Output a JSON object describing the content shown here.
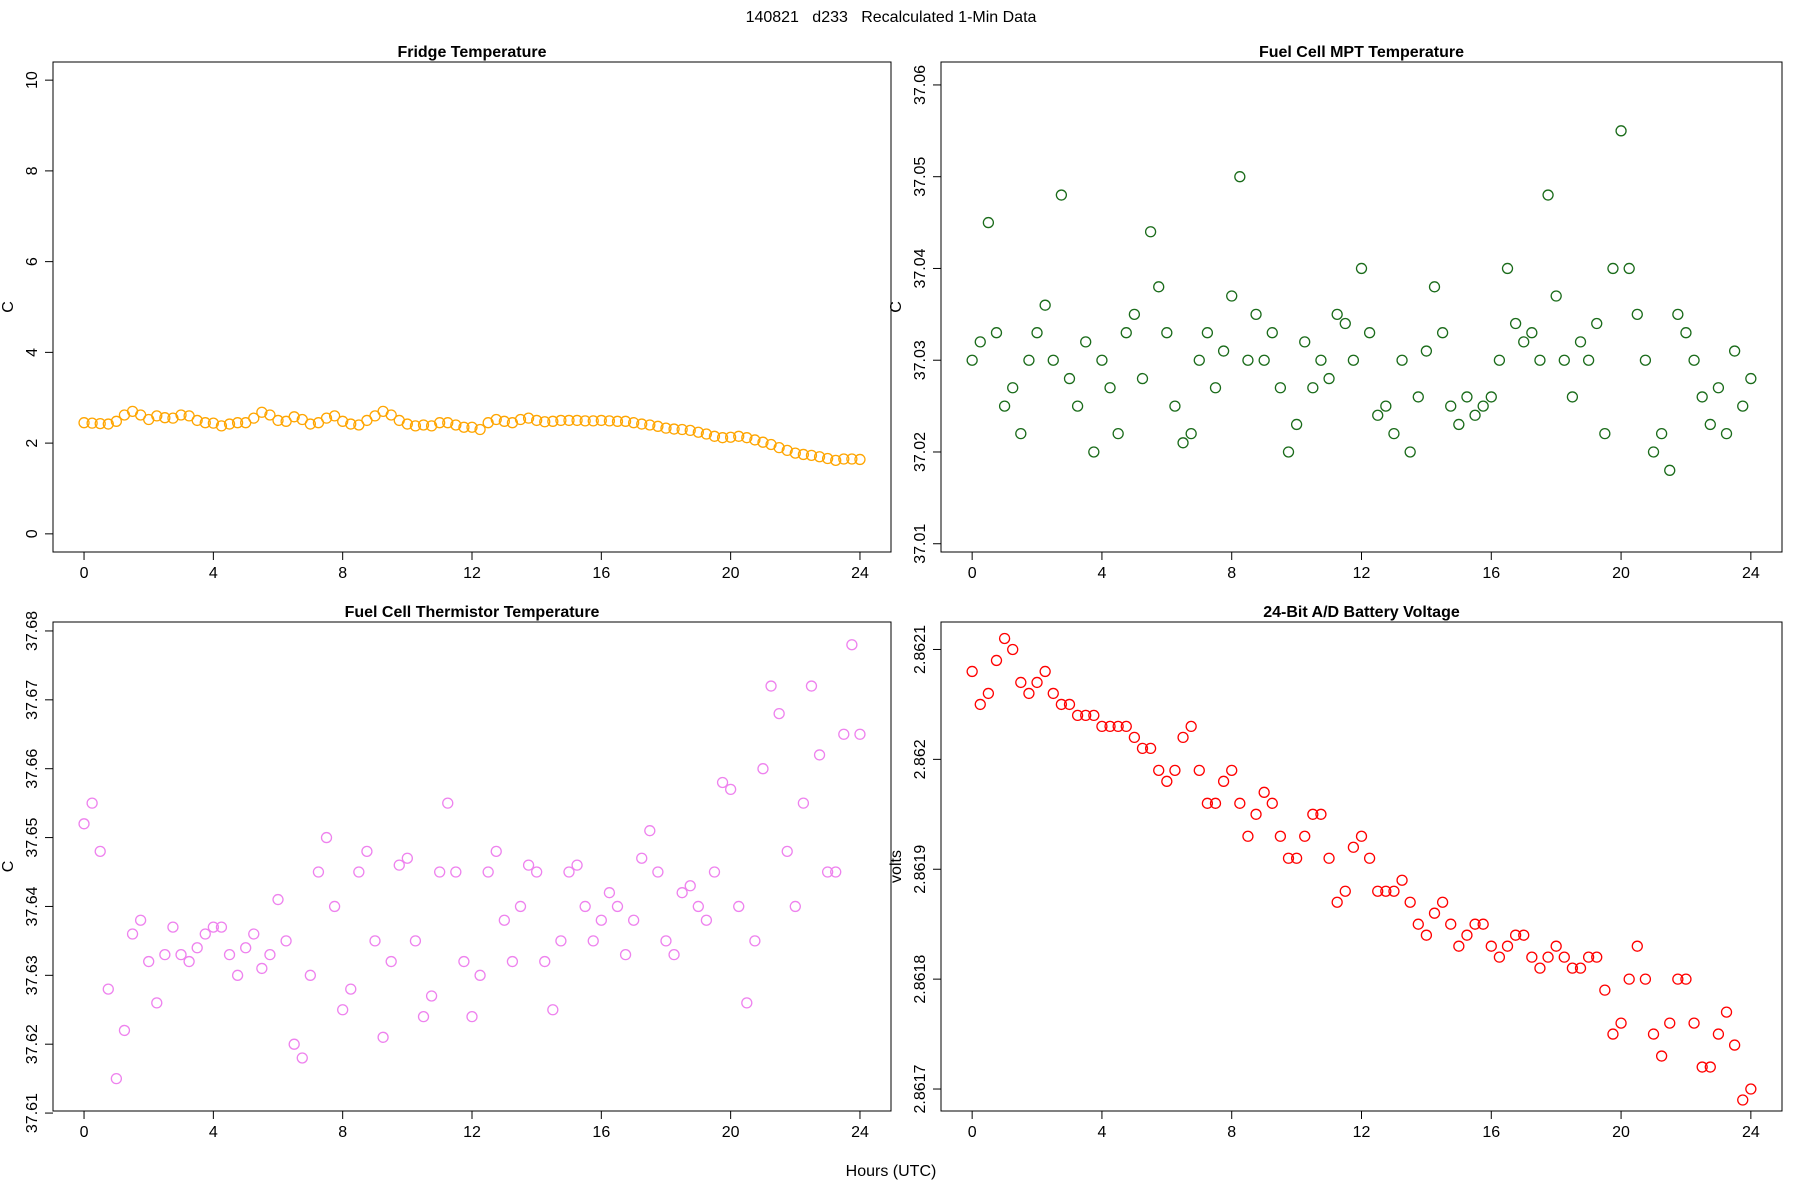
{
  "title": "140821   d233   Recalculated 1-Min Data",
  "x_label": "Hours (UTC)",
  "chart_data": [
    {
      "type": "scatter",
      "title": "Fridge Temperature",
      "y_label": "C",
      "color": "#ffa500",
      "x": [
        0,
        0.25,
        0.5,
        0.75,
        1,
        1.25,
        1.5,
        1.75,
        2,
        2.25,
        2.5,
        2.75,
        3,
        3.25,
        3.5,
        3.75,
        4,
        4.25,
        4.5,
        4.75,
        5,
        5.25,
        5.5,
        5.75,
        6,
        6.25,
        6.5,
        6.75,
        7,
        7.25,
        7.5,
        7.75,
        8,
        8.25,
        8.5,
        8.75,
        9,
        9.25,
        9.5,
        9.75,
        10,
        10.25,
        10.5,
        10.75,
        11,
        11.25,
        11.5,
        11.75,
        12,
        12.25,
        12.5,
        12.75,
        13,
        13.25,
        13.5,
        13.75,
        14,
        14.25,
        14.5,
        14.75,
        15,
        15.25,
        15.5,
        15.75,
        16,
        16.25,
        16.5,
        16.75,
        17,
        17.25,
        17.5,
        17.75,
        18,
        18.25,
        18.5,
        18.75,
        19,
        19.25,
        19.5,
        19.75,
        20,
        20.25,
        20.5,
        20.75,
        21,
        21.25,
        21.5,
        21.75,
        22,
        22.25,
        22.5,
        22.75,
        23,
        23.25,
        23.5,
        23.75,
        24
      ],
      "values": [
        2.45,
        2.44,
        2.43,
        2.42,
        2.48,
        2.62,
        2.7,
        2.62,
        2.52,
        2.6,
        2.56,
        2.55,
        2.62,
        2.6,
        2.5,
        2.45,
        2.44,
        2.38,
        2.42,
        2.45,
        2.45,
        2.55,
        2.68,
        2.62,
        2.5,
        2.48,
        2.58,
        2.52,
        2.42,
        2.45,
        2.55,
        2.6,
        2.48,
        2.42,
        2.4,
        2.5,
        2.6,
        2.7,
        2.62,
        2.5,
        2.42,
        2.38,
        2.4,
        2.38,
        2.45,
        2.45,
        2.4,
        2.35,
        2.35,
        2.3,
        2.45,
        2.52,
        2.48,
        2.45,
        2.52,
        2.55,
        2.5,
        2.47,
        2.48,
        2.5,
        2.5,
        2.5,
        2.49,
        2.49,
        2.5,
        2.49,
        2.48,
        2.48,
        2.45,
        2.42,
        2.4,
        2.37,
        2.33,
        2.31,
        2.3,
        2.28,
        2.24,
        2.2,
        2.15,
        2.12,
        2.13,
        2.15,
        2.12,
        2.07,
        2.02,
        1.97,
        1.9,
        1.84,
        1.78,
        1.75,
        1.73,
        1.7,
        1.66,
        1.62,
        1.65,
        1.65,
        1.64
      ],
      "xlim": [
        -0.96,
        24.96
      ],
      "xticks": [
        0,
        4,
        8,
        12,
        16,
        20,
        24
      ],
      "ylim": [
        -0.4,
        10.4
      ],
      "yticks": [
        0,
        2,
        4,
        6,
        8,
        10
      ]
    },
    {
      "type": "scatter",
      "title": "Fuel Cell MPT Temperature",
      "y_label": "C",
      "color": "#1a6b1a",
      "x": [
        0,
        0.25,
        0.5,
        0.75,
        1,
        1.25,
        1.5,
        1.75,
        2,
        2.25,
        2.5,
        2.75,
        3,
        3.25,
        3.5,
        3.75,
        4,
        4.25,
        4.5,
        4.75,
        5,
        5.25,
        5.5,
        5.75,
        6,
        6.25,
        6.5,
        6.75,
        7,
        7.25,
        7.5,
        7.75,
        8,
        8.25,
        8.5,
        8.75,
        9,
        9.25,
        9.5,
        9.75,
        10,
        10.25,
        10.5,
        10.75,
        11,
        11.25,
        11.5,
        11.75,
        12,
        12.25,
        12.5,
        12.75,
        13,
        13.25,
        13.5,
        13.75,
        14,
        14.25,
        14.5,
        14.75,
        15,
        15.25,
        15.5,
        15.75,
        16,
        16.25,
        16.5,
        16.75,
        17,
        17.25,
        17.5,
        17.75,
        18,
        18.25,
        18.5,
        18.75,
        19,
        19.25,
        19.5,
        19.75,
        20,
        20.25,
        20.5,
        20.75,
        21,
        21.25,
        21.5,
        21.75,
        22,
        22.25,
        22.5,
        22.75,
        23,
        23.25,
        23.5,
        23.75,
        24
      ],
      "values": [
        37.03,
        37.032,
        37.045,
        37.033,
        37.025,
        37.027,
        37.022,
        37.03,
        37.033,
        37.036,
        37.03,
        37.048,
        37.028,
        37.025,
        37.032,
        37.02,
        37.03,
        37.027,
        37.022,
        37.033,
        37.035,
        37.028,
        37.044,
        37.038,
        37.033,
        37.025,
        37.021,
        37.022,
        37.03,
        37.033,
        37.027,
        37.031,
        37.037,
        37.05,
        37.03,
        37.035,
        37.03,
        37.033,
        37.027,
        37.02,
        37.023,
        37.032,
        37.027,
        37.03,
        37.028,
        37.035,
        37.034,
        37.03,
        37.04,
        37.033,
        37.024,
        37.025,
        37.022,
        37.03,
        37.02,
        37.026,
        37.031,
        37.038,
        37.033,
        37.025,
        37.023,
        37.026,
        37.024,
        37.025,
        37.026,
        37.03,
        37.04,
        37.034,
        37.032,
        37.033,
        37.03,
        37.048,
        37.037,
        37.03,
        37.026,
        37.032,
        37.03,
        37.034,
        37.022,
        37.04,
        37.055,
        37.04,
        37.035,
        37.03,
        37.02,
        37.022,
        37.018,
        37.035,
        37.033,
        37.03,
        37.026,
        37.023,
        37.027,
        37.022,
        37.031,
        37.025,
        37.028
      ],
      "xlim": [
        -0.96,
        24.96
      ],
      "xticks": [
        0,
        4,
        8,
        12,
        16,
        20,
        24
      ],
      "ylim": [
        37.0091,
        37.0625
      ],
      "yticks": [
        37.01,
        37.02,
        37.03,
        37.04,
        37.05,
        37.06
      ]
    },
    {
      "type": "scatter",
      "title": "Fuel Cell Thermistor Temperature",
      "y_label": "C",
      "color": "#ee82ee",
      "x": [
        0,
        0.25,
        0.5,
        0.75,
        1,
        1.25,
        1.5,
        1.75,
        2,
        2.25,
        2.5,
        2.75,
        3,
        3.25,
        3.5,
        3.75,
        4,
        4.25,
        4.5,
        4.75,
        5,
        5.25,
        5.5,
        5.75,
        6,
        6.25,
        6.5,
        6.75,
        7,
        7.25,
        7.5,
        7.75,
        8,
        8.25,
        8.5,
        8.75,
        9,
        9.25,
        9.5,
        9.75,
        10,
        10.25,
        10.5,
        10.75,
        11,
        11.25,
        11.5,
        11.75,
        12,
        12.25,
        12.5,
        12.75,
        13,
        13.25,
        13.5,
        13.75,
        14,
        14.25,
        14.5,
        14.75,
        15,
        15.25,
        15.5,
        15.75,
        16,
        16.25,
        16.5,
        16.75,
        17,
        17.25,
        17.5,
        17.75,
        18,
        18.25,
        18.5,
        18.75,
        19,
        19.25,
        19.5,
        19.75,
        20,
        20.25,
        20.5,
        20.75,
        21,
        21.25,
        21.5,
        21.75,
        22,
        22.25,
        22.5,
        22.75,
        23,
        23.25,
        23.5,
        23.75,
        24
      ],
      "values": [
        37.652,
        37.655,
        37.648,
        37.628,
        37.615,
        37.622,
        37.636,
        37.638,
        37.632,
        37.626,
        37.633,
        37.637,
        37.633,
        37.632,
        37.634,
        37.636,
        37.637,
        37.637,
        37.633,
        37.63,
        37.634,
        37.636,
        37.631,
        37.633,
        37.641,
        37.635,
        37.62,
        37.618,
        37.63,
        37.645,
        37.65,
        37.64,
        37.625,
        37.628,
        37.645,
        37.648,
        37.635,
        37.621,
        37.632,
        37.646,
        37.647,
        37.635,
        37.624,
        37.627,
        37.645,
        37.655,
        37.645,
        37.632,
        37.624,
        37.63,
        37.645,
        37.648,
        37.638,
        37.632,
        37.64,
        37.646,
        37.645,
        37.632,
        37.625,
        37.635,
        37.645,
        37.646,
        37.64,
        37.635,
        37.638,
        37.642,
        37.64,
        37.633,
        37.638,
        37.647,
        37.651,
        37.645,
        37.635,
        37.633,
        37.642,
        37.643,
        37.64,
        37.638,
        37.645,
        37.658,
        37.657,
        37.64,
        37.626,
        37.635,
        37.66,
        37.672,
        37.668,
        37.648,
        37.64,
        37.655,
        37.672,
        37.662,
        37.645,
        37.645,
        37.665,
        37.678,
        37.665
      ],
      "xlim": [
        -0.96,
        24.96
      ],
      "xticks": [
        0,
        4,
        8,
        12,
        16,
        20,
        24
      ],
      "ylim": [
        37.6103,
        37.6813
      ],
      "yticks": [
        37.61,
        37.62,
        37.63,
        37.64,
        37.65,
        37.66,
        37.67,
        37.68
      ]
    },
    {
      "type": "scatter",
      "title": "24-Bit A/D Battery Voltage",
      "y_label": "volts",
      "color": "#ff0000",
      "x": [
        0,
        0.25,
        0.5,
        0.75,
        1,
        1.25,
        1.5,
        1.75,
        2,
        2.25,
        2.5,
        2.75,
        3,
        3.25,
        3.5,
        3.75,
        4,
        4.25,
        4.5,
        4.75,
        5,
        5.25,
        5.5,
        5.75,
        6,
        6.25,
        6.5,
        6.75,
        7,
        7.25,
        7.5,
        7.75,
        8,
        8.25,
        8.5,
        8.75,
        9,
        9.25,
        9.5,
        9.75,
        10,
        10.25,
        10.5,
        10.75,
        11,
        11.25,
        11.5,
        11.75,
        12,
        12.25,
        12.5,
        12.75,
        13,
        13.25,
        13.5,
        13.75,
        14,
        14.25,
        14.5,
        14.75,
        15,
        15.25,
        15.5,
        15.75,
        16,
        16.25,
        16.5,
        16.75,
        17,
        17.25,
        17.5,
        17.75,
        18,
        18.25,
        18.5,
        18.75,
        19,
        19.25,
        19.5,
        19.75,
        20,
        20.25,
        20.5,
        20.75,
        21,
        21.25,
        21.5,
        21.75,
        22,
        22.25,
        22.5,
        22.75,
        23,
        23.25,
        23.5,
        23.75,
        24
      ],
      "values": [
        2.86208,
        2.86205,
        2.86206,
        2.86209,
        2.86211,
        2.8621,
        2.86207,
        2.86206,
        2.86207,
        2.86208,
        2.86206,
        2.86205,
        2.86205,
        2.86204,
        2.86204,
        2.86204,
        2.86203,
        2.86203,
        2.86203,
        2.86203,
        2.86202,
        2.86201,
        2.86201,
        2.86199,
        2.86198,
        2.86199,
        2.86202,
        2.86203,
        2.86199,
        2.86196,
        2.86196,
        2.86198,
        2.86199,
        2.86196,
        2.86193,
        2.86195,
        2.86197,
        2.86196,
        2.86193,
        2.86191,
        2.86191,
        2.86193,
        2.86195,
        2.86195,
        2.86191,
        2.86187,
        2.86188,
        2.86192,
        2.86193,
        2.86191,
        2.86188,
        2.86188,
        2.86188,
        2.86189,
        2.86187,
        2.86185,
        2.86184,
        2.86186,
        2.86187,
        2.86185,
        2.86183,
        2.86184,
        2.86185,
        2.86185,
        2.86183,
        2.86182,
        2.86183,
        2.86184,
        2.86184,
        2.86182,
        2.86181,
        2.86182,
        2.86183,
        2.86182,
        2.86181,
        2.86181,
        2.86182,
        2.86182,
        2.86179,
        2.86175,
        2.86176,
        2.8618,
        2.86183,
        2.8618,
        2.86175,
        2.86173,
        2.86176,
        2.8618,
        2.8618,
        2.86176,
        2.86172,
        2.86172,
        2.86175,
        2.86177,
        2.86174,
        2.86169,
        2.8617
      ],
      "xlim": [
        -0.96,
        24.96
      ],
      "xticks": [
        0,
        4,
        8,
        12,
        16,
        20,
        24
      ],
      "ylim": [
        2.86168,
        2.862125
      ],
      "yticks": [
        2.8617,
        2.8618,
        2.8619,
        2.862,
        2.8621
      ]
    }
  ]
}
